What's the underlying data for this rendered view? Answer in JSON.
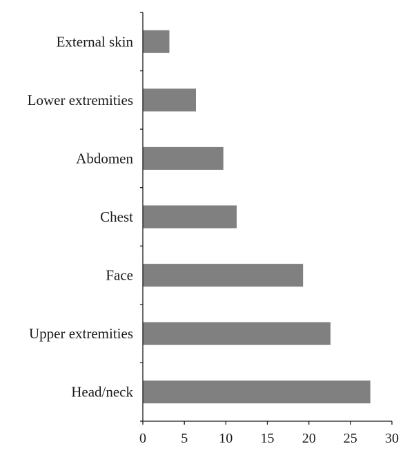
{
  "chart_data": {
    "type": "bar",
    "orientation": "horizontal",
    "categories": [
      "External skin",
      "Lower extremities",
      "Abdomen",
      "Chest",
      "Face",
      "Upper extremities",
      "Head/neck"
    ],
    "values": [
      3.2,
      6.4,
      9.7,
      11.3,
      19.3,
      22.6,
      27.4
    ],
    "xlim": [
      0,
      30
    ],
    "xticks": [
      "0",
      "5",
      "10",
      "15",
      "20",
      "25",
      "30"
    ],
    "title": "",
    "xlabel": "",
    "ylabel": "",
    "bar_color": "#808080",
    "grid": false,
    "legend": "none"
  }
}
